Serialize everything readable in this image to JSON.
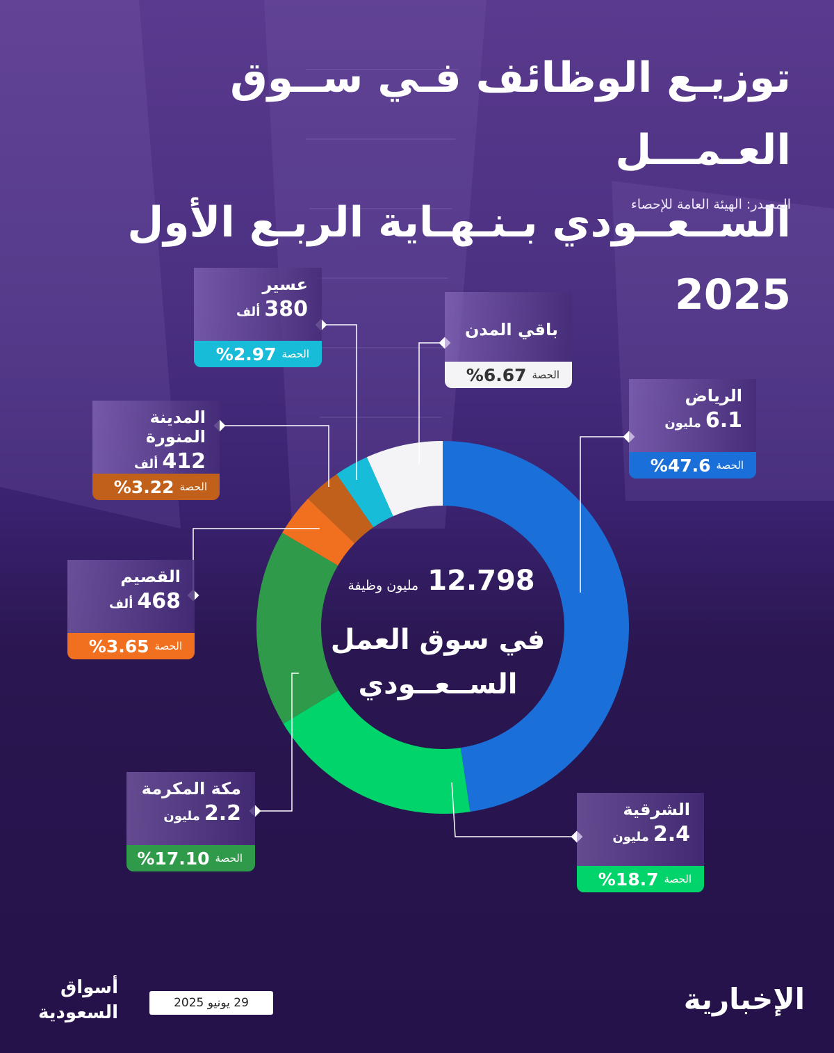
{
  "header": {
    "title_line1": "توزيـع الوظائف فـي ســوق العـمـــل",
    "title_line2": "الســعــودي بـنـهـاية الربـع الأول 2025",
    "source": "المصدر: الهيئة العامة للإحصاء"
  },
  "center": {
    "total": "12.798",
    "total_unit": "مليون وظيفة",
    "line1": "في سوق العمل",
    "line2": "الســعــودي"
  },
  "share_label": "الحصة",
  "chart_data": {
    "type": "pie",
    "donut": true,
    "total_jobs_million": 12.798,
    "slices": [
      {
        "name": "الرياض",
        "value": "6.1",
        "unit": "مليون",
        "share": 47.6,
        "share_text": "%47.6",
        "color": "#1a6fd8"
      },
      {
        "name": "الشرقية",
        "value": "2.4",
        "unit": "مليون",
        "share": 18.7,
        "share_text": "%18.7",
        "color": "#00d46a"
      },
      {
        "name": "مكة المكرمة",
        "value": "2.2",
        "unit": "مليون",
        "share": 17.1,
        "share_text": "%17.10",
        "color": "#2f9a4a"
      },
      {
        "name": "القصيم",
        "value": "468",
        "unit": "ألف",
        "share": 3.65,
        "share_text": "%3.65",
        "color": "#f07020"
      },
      {
        "name": "المدينة المنورة",
        "value": "412",
        "unit": "ألف",
        "share": 3.22,
        "share_text": "%3.22",
        "color": "#c0601a"
      },
      {
        "name": "عسير",
        "value": "380",
        "unit": "ألف",
        "share": 2.97,
        "share_text": "%2.97",
        "color": "#16bcd8"
      },
      {
        "name": "باقي المدن",
        "value": "",
        "unit": "",
        "share": 6.67,
        "share_text": "%6.67",
        "color": "#f4f4f6"
      }
    ]
  },
  "footer": {
    "date": "29 يونيو 2025",
    "brand_left_line1": "أسواق",
    "brand_left_line2": "السعودية",
    "brand_right": "الإخبارية"
  }
}
